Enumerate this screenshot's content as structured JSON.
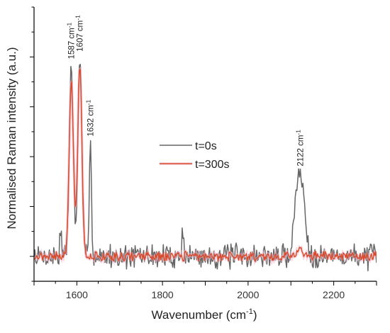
{
  "chart_data": {
    "type": "line",
    "xlabel": "Wavenumber (cm",
    "xlabel_sup": "-1",
    "xlabel_close": ")",
    "ylabel": "Normalised Raman intensity (a.u.)",
    "xlim": [
      1500,
      2300
    ],
    "ylim": [
      -0.1,
      1.0
    ],
    "x_ticks": [
      1600,
      1800,
      2000,
      2200
    ],
    "x_tick_labels": [
      "1600",
      "1800",
      "2000",
      "2200"
    ],
    "y_tick_labels_shown": false,
    "legend_position": "center",
    "series": [
      {
        "name": "t=0s",
        "color": "#666666",
        "peaks": [
          {
            "x": 1587,
            "height": 0.77,
            "width": 4.5
          },
          {
            "x": 1607,
            "height": 0.8,
            "width": 4.5
          },
          {
            "x": 1632,
            "height": 0.45,
            "width": 2.5
          },
          {
            "x": 1562,
            "height": 0.11,
            "width": 2
          },
          {
            "x": 1848,
            "height": 0.12,
            "width": 2
          },
          {
            "x": 2122,
            "height": 0.33,
            "width": 10
          },
          {
            "x": 2110,
            "height": 0.07,
            "width": 4
          }
        ],
        "noise": 0.04,
        "seed": 7
      },
      {
        "name": "t=300s",
        "color": "#d94a2c",
        "peaks": [
          {
            "x": 1587,
            "height": 0.7,
            "width": 5
          },
          {
            "x": 1607,
            "height": 0.76,
            "width": 5
          },
          {
            "x": 2122,
            "height": 0.03,
            "width": 8
          }
        ],
        "noise": 0.015,
        "seed": 21
      }
    ],
    "annotations": [
      {
        "x": 1587,
        "y": 0.78,
        "label": "1587 cm",
        "sup": "-1"
      },
      {
        "x": 1607,
        "y": 0.81,
        "label": "1607 cm",
        "sup": "-1"
      },
      {
        "x": 1632,
        "y": 0.47,
        "label": "1632 cm",
        "sup": "-1"
      },
      {
        "x": 2122,
        "y": 0.35,
        "label": "2122 cm",
        "sup": "-1"
      }
    ]
  }
}
